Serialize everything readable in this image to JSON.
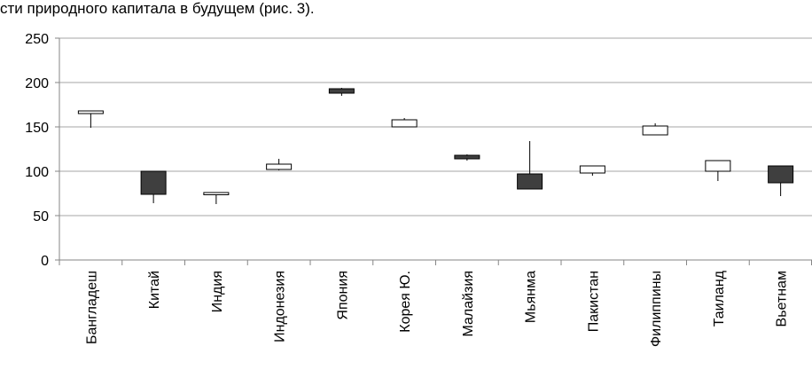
{
  "caption": "сти природного капитала в будущем (рис. 3).",
  "chart_data": {
    "type": "candlestick",
    "title": "",
    "xlabel": "",
    "ylabel": "",
    "ylim": [
      0,
      250
    ],
    "yticks": [
      0,
      50,
      100,
      150,
      200,
      250
    ],
    "grid": true,
    "legend": "none",
    "categories": [
      "Бангладеш",
      "Китай",
      "Индия",
      "Индонезия",
      "Япония",
      "Корея Ю.",
      "Малайзия",
      "Мьянма",
      "Пакистан",
      "Филиппины",
      "Таиланд",
      "Вьетнам"
    ],
    "series": [
      {
        "open": [
          165,
          100,
          74,
          102,
          193,
          150,
          118,
          97,
          98,
          141,
          100,
          106
        ],
        "close": [
          168,
          74,
          76,
          108,
          188,
          158,
          114,
          80,
          106,
          151,
          112,
          87
        ],
        "high": [
          168,
          100,
          76,
          114,
          194,
          160,
          119,
          134,
          106,
          154,
          112,
          106
        ],
        "low": [
          149,
          64,
          63,
          101,
          185,
          150,
          112,
          80,
          95,
          141,
          89,
          72
        ]
      }
    ],
    "colors": {
      "up": "#ffffff",
      "down": "#3f3f3f",
      "grid": "#a6a6a6",
      "axis": "#868686",
      "outline": "#000000"
    }
  }
}
